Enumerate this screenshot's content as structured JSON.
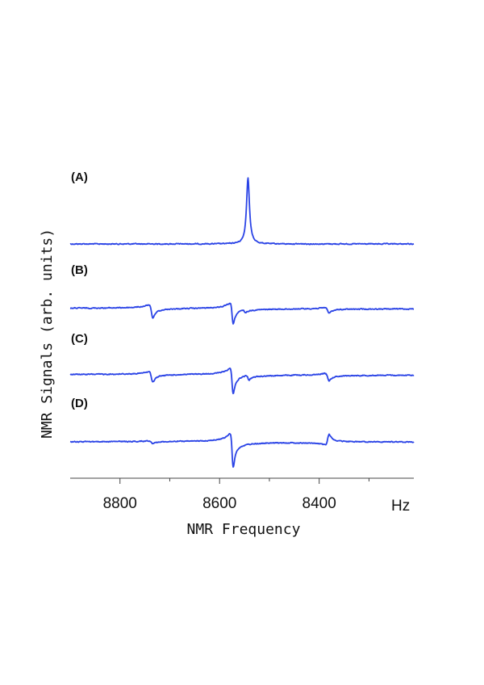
{
  "chart_data": {
    "type": "line",
    "xlabel": "NMR Frequency",
    "ylabel": "NMR Signals (arb. units)",
    "x_unit": "Hz",
    "xlim": [
      8900,
      8210
    ],
    "x_reversed": true,
    "x_ticks": [
      8800,
      8600,
      8400
    ],
    "x_ticks_minor": [
      8700,
      8500,
      8300
    ],
    "trace_color": "#2b44e6",
    "series": [
      {
        "name": "(A)",
        "features": [
          {
            "x": 8543,
            "amp": 1.0,
            "width": 2.2,
            "shape": "absorption"
          }
        ]
      },
      {
        "name": "(B)",
        "features": [
          {
            "x": 8737,
            "amp": 0.28,
            "width": 2.5,
            "shape": "dispersion"
          },
          {
            "x": 8575,
            "amp": 0.45,
            "width": 2.0,
            "shape": "dispersion"
          },
          {
            "x": 8550,
            "amp": 0.06,
            "width": 2.0,
            "shape": "dispersion"
          },
          {
            "x": 8383,
            "amp": 0.12,
            "width": 2.5,
            "shape": "dispersion"
          }
        ]
      },
      {
        "name": "(C)",
        "features": [
          {
            "x": 8737,
            "amp": 0.22,
            "width": 2.5,
            "shape": "dispersion"
          },
          {
            "x": 8575,
            "amp": 0.55,
            "width": 2.0,
            "shape": "dispersion"
          },
          {
            "x": 8543,
            "amp": 0.1,
            "width": 2.0,
            "shape": "dispersion"
          },
          {
            "x": 8383,
            "amp": 0.16,
            "width": 2.5,
            "shape": "dispersion"
          }
        ]
      },
      {
        "name": "(D)",
        "features": [
          {
            "x": 8737,
            "amp": 0.06,
            "width": 2.5,
            "shape": "dispersion"
          },
          {
            "x": 8575,
            "amp": 0.8,
            "width": 2.0,
            "shape": "dispersion"
          },
          {
            "x": 8383,
            "amp": -0.25,
            "width": 2.5,
            "shape": "dispersion"
          }
        ]
      }
    ]
  }
}
